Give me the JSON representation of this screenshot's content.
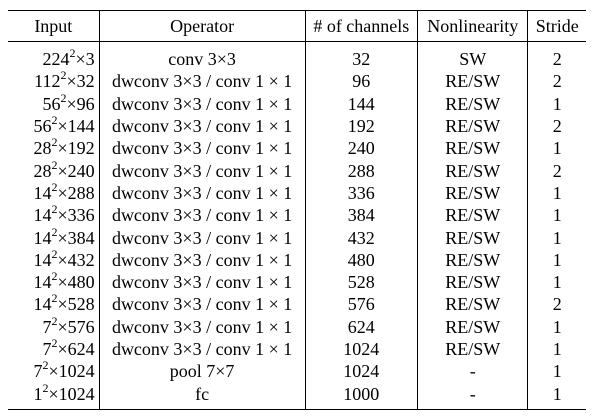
{
  "table": {
    "headers": [
      "Input",
      "Operator",
      "# of channels",
      "Nonlinearity",
      "Stride"
    ],
    "rows": [
      {
        "input_base": "224",
        "input_exp": "2",
        "input_rest": "×3",
        "operator": "conv 3×3",
        "channels": "32",
        "nonlinearity": "SW",
        "stride": "2"
      },
      {
        "input_base": "112",
        "input_exp": "2",
        "input_rest": "×32",
        "operator": "dwconv 3×3 / conv 1 × 1",
        "channels": "96",
        "nonlinearity": "RE/SW",
        "stride": "2"
      },
      {
        "input_base": "56",
        "input_exp": "2",
        "input_rest": "×96",
        "operator": "dwconv 3×3 / conv 1 × 1",
        "channels": "144",
        "nonlinearity": "RE/SW",
        "stride": "1"
      },
      {
        "input_base": "56",
        "input_exp": "2",
        "input_rest": "×144",
        "operator": "dwconv 3×3 / conv 1 × 1",
        "channels": "192",
        "nonlinearity": "RE/SW",
        "stride": "2"
      },
      {
        "input_base": "28",
        "input_exp": "2",
        "input_rest": "×192",
        "operator": "dwconv 3×3 / conv 1 × 1",
        "channels": "240",
        "nonlinearity": "RE/SW",
        "stride": "1"
      },
      {
        "input_base": "28",
        "input_exp": "2",
        "input_rest": "×240",
        "operator": "dwconv 3×3 / conv 1 × 1",
        "channels": "288",
        "nonlinearity": "RE/SW",
        "stride": "2"
      },
      {
        "input_base": "14",
        "input_exp": "2",
        "input_rest": "×288",
        "operator": "dwconv 3×3 / conv 1 × 1",
        "channels": "336",
        "nonlinearity": "RE/SW",
        "stride": "1"
      },
      {
        "input_base": "14",
        "input_exp": "2",
        "input_rest": "×336",
        "operator": "dwconv 3×3 / conv 1 × 1",
        "channels": "384",
        "nonlinearity": "RE/SW",
        "stride": "1"
      },
      {
        "input_base": "14",
        "input_exp": "2",
        "input_rest": "×384",
        "operator": "dwconv 3×3 / conv 1 × 1",
        "channels": "432",
        "nonlinearity": "RE/SW",
        "stride": "1"
      },
      {
        "input_base": "14",
        "input_exp": "2",
        "input_rest": "×432",
        "operator": "dwconv 3×3 / conv 1 × 1",
        "channels": "480",
        "nonlinearity": "RE/SW",
        "stride": "1"
      },
      {
        "input_base": "14",
        "input_exp": "2",
        "input_rest": "×480",
        "operator": "dwconv 3×3 / conv 1 × 1",
        "channels": "528",
        "nonlinearity": "RE/SW",
        "stride": "1"
      },
      {
        "input_base": "14",
        "input_exp": "2",
        "input_rest": "×528",
        "operator": "dwconv 3×3 / conv 1 × 1",
        "channels": "576",
        "nonlinearity": "RE/SW",
        "stride": "2"
      },
      {
        "input_base": "7",
        "input_exp": "2",
        "input_rest": "×576",
        "operator": "dwconv 3×3 / conv 1 × 1",
        "channels": "624",
        "nonlinearity": "RE/SW",
        "stride": "1"
      },
      {
        "input_base": "7",
        "input_exp": "2",
        "input_rest": "×624",
        "operator": "dwconv 3×3 / conv 1 × 1",
        "channels": "1024",
        "nonlinearity": "RE/SW",
        "stride": "1"
      },
      {
        "input_base": "7",
        "input_exp": "2",
        "input_rest": "×1024",
        "operator": "pool 7×7",
        "channels": "1024",
        "nonlinearity": "-",
        "stride": "1"
      },
      {
        "input_base": "1",
        "input_exp": "2",
        "input_rest": "×1024",
        "operator": "fc",
        "channels": "1000",
        "nonlinearity": "-",
        "stride": "1"
      }
    ]
  }
}
